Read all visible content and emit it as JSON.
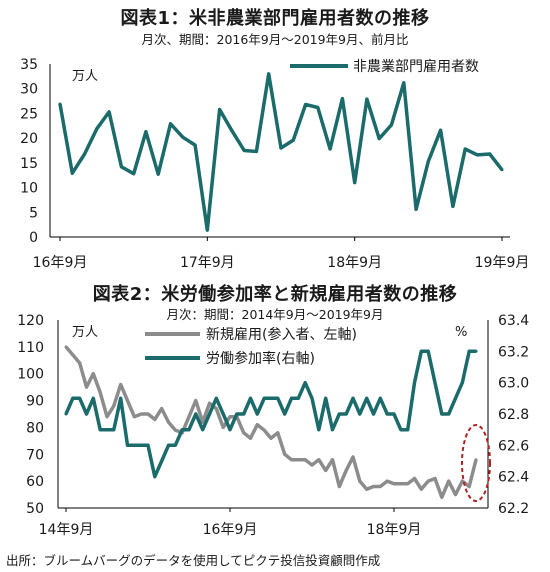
{
  "chart1": {
    "title": "図表1：米非農業部門雇用者数の推移",
    "subtitle": "月次、期間：2016年9月～2019年9月、前月比",
    "unit": "万人",
    "legend": "非農業部門雇用者数",
    "color": "#1b6b6b"
  },
  "chart2": {
    "title": "図表2：米労働参加率と新規雇用者数の推移",
    "subtitle": "月次：期間：2014年9月～2019年9月",
    "unit_left": "万人",
    "unit_right": "%",
    "legend_new_jobs": "新規雇用(参入者、左軸)",
    "legend_participation": "労働参加率(右軸)",
    "color_new_jobs": "#8c8c8c",
    "color_participation": "#1b6b6b",
    "highlight_color": "#b22222"
  },
  "source": "出所：ブルームバーグのデータを使用してピクテ投信投資顧問作成",
  "chart_data": [
    {
      "type": "line",
      "title": "図表1：米非農業部門雇用者数の推移",
      "subtitle": "月次、期間：2016年9月～2019年9月、前月比",
      "ylabel": "万人",
      "ylim": [
        0,
        35
      ],
      "yticks": [
        0,
        5,
        10,
        15,
        20,
        25,
        30,
        35
      ],
      "xtick_labels": [
        "16年9月",
        "17年9月",
        "18年9月",
        "19年9月"
      ],
      "legend_position": "top-right",
      "series": [
        {
          "name": "非農業部門雇用者数",
          "values": [
            26.9,
            12.9,
            16.8,
            21.9,
            25.3,
            14.2,
            12.8,
            21.3,
            12.7,
            22.9,
            20.2,
            18.6,
            1.4,
            25.8,
            21.5,
            17.5,
            17.3,
            33.0,
            18.0,
            19.6,
            26.8,
            26.2,
            17.8,
            28.0,
            11.0,
            27.9,
            19.9,
            22.7,
            31.2,
            5.6,
            15.3,
            21.6,
            6.2,
            17.8,
            16.6,
            16.8,
            13.6
          ]
        }
      ]
    },
    {
      "type": "line",
      "title": "図表2：米労働参加率と新規雇用者数の推移",
      "subtitle": "月次：期間：2014年9月～2019年9月",
      "ylabel": "万人",
      "ylabel_right": "%",
      "ylim": [
        50,
        120
      ],
      "ylim_right": [
        62.2,
        63.4
      ],
      "yticks": [
        50,
        60,
        70,
        80,
        90,
        100,
        110,
        120
      ],
      "yticks_right": [
        62.2,
        62.4,
        62.6,
        62.8,
        63.0,
        63.2,
        63.4
      ],
      "xtick_labels": [
        "14年9月",
        "16年9月",
        "18年9月"
      ],
      "legend_position": "top-center",
      "series": [
        {
          "name": "新規雇用(参入者、左軸)",
          "axis": "left",
          "values": [
            110,
            107,
            104,
            95,
            100,
            93,
            84,
            88,
            96,
            90,
            84,
            85,
            85,
            83,
            87,
            82,
            79,
            78,
            84,
            90,
            82,
            89,
            87,
            80,
            84,
            84,
            78,
            76,
            81,
            79,
            76,
            78,
            70,
            68,
            68,
            68,
            66,
            68,
            64,
            68,
            58,
            64,
            69,
            60,
            57,
            58,
            58,
            60,
            59,
            59,
            59,
            61,
            57,
            60,
            61,
            54,
            60,
            55,
            60,
            58,
            68
          ]
        },
        {
          "name": "労働参加率(右軸)",
          "axis": "right",
          "values": [
            62.8,
            62.9,
            62.9,
            62.8,
            62.9,
            62.7,
            62.7,
            62.7,
            62.9,
            62.6,
            62.6,
            62.6,
            62.6,
            62.4,
            62.5,
            62.6,
            62.6,
            62.7,
            62.7,
            62.8,
            62.7,
            62.8,
            62.9,
            62.8,
            62.7,
            62.8,
            62.8,
            62.9,
            62.8,
            62.9,
            62.9,
            62.9,
            62.8,
            62.9,
            62.9,
            63.0,
            62.9,
            62.7,
            62.9,
            62.7,
            62.8,
            62.8,
            62.9,
            62.8,
            62.9,
            62.8,
            62.9,
            62.8,
            62.8,
            62.7,
            62.7,
            63.0,
            63.2,
            63.2,
            63.0,
            62.8,
            62.8,
            62.9,
            63.0,
            63.2,
            63.2
          ]
        }
      ]
    }
  ]
}
